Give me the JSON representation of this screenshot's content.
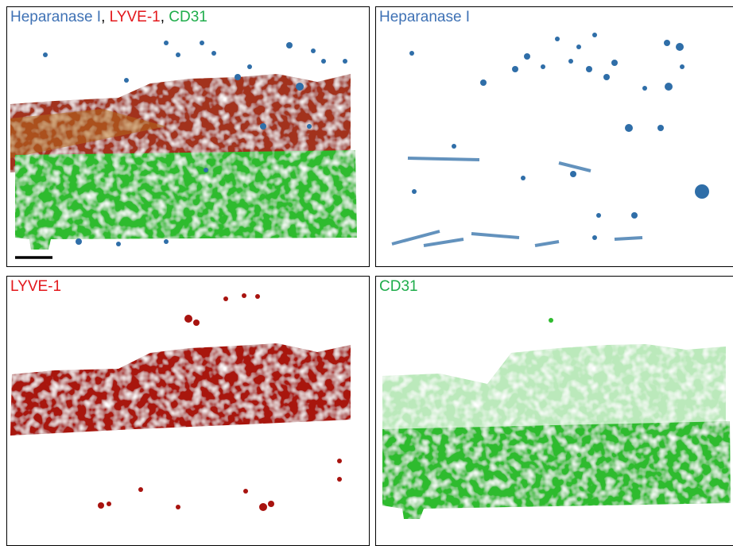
{
  "panels": [
    {
      "label_parts": [
        {
          "text": "Heparanase I",
          "color": "#3f72b5"
        },
        {
          "text": ", ",
          "color": "#000000"
        },
        {
          "text": "LYVE-1",
          "color": "#e3171b"
        },
        {
          "text": ", ",
          "color": "#000000"
        },
        {
          "text": "CD31",
          "color": "#1fad4b"
        }
      ]
    },
    {
      "label_parts": [
        {
          "text": "Heparanase I",
          "color": "#3f72b5"
        }
      ]
    },
    {
      "label_parts": [
        {
          "text": "LYVE-1",
          "color": "#e3171b"
        }
      ]
    },
    {
      "label_parts": [
        {
          "text": "CD31",
          "color": "#1fad4b"
        }
      ]
    }
  ]
}
